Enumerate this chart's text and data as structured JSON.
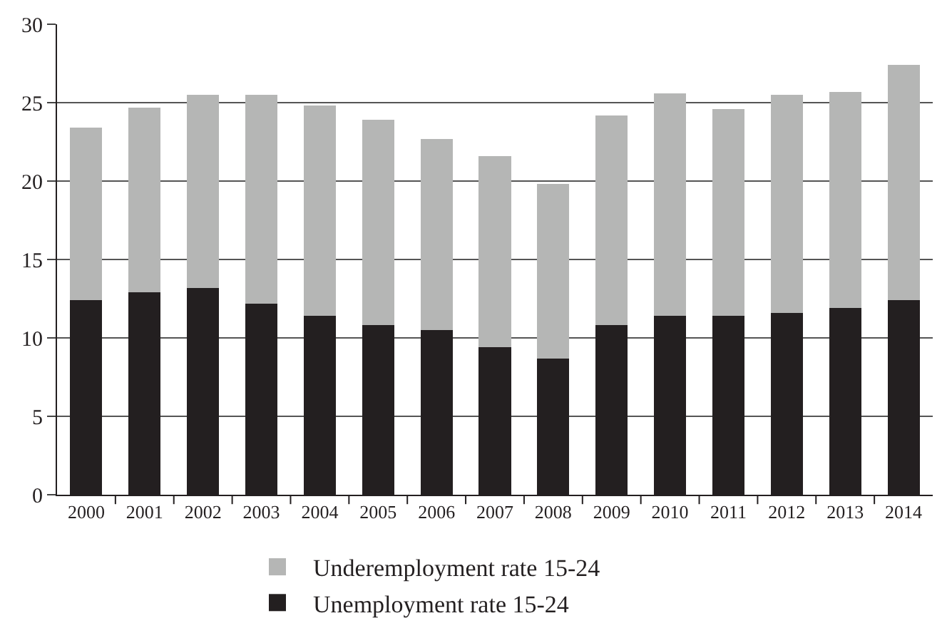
{
  "chart_data": {
    "type": "bar",
    "stacked": true,
    "categories": [
      "2000",
      "2001",
      "2002",
      "2003",
      "2004",
      "2005",
      "2006",
      "2007",
      "2008",
      "2009",
      "2010",
      "2011",
      "2012",
      "2013",
      "2014"
    ],
    "series": [
      {
        "name": "Unemployment rate 15-24",
        "color": "#231f20",
        "values": [
          12.4,
          12.9,
          13.2,
          12.2,
          11.4,
          10.8,
          10.5,
          9.4,
          8.7,
          10.8,
          11.4,
          11.4,
          11.6,
          11.9,
          12.4
        ]
      },
      {
        "name": "Underemployment rate 15-24",
        "color": "#b5b6b5",
        "values": [
          11.0,
          11.8,
          12.3,
          13.3,
          13.4,
          13.1,
          12.2,
          12.2,
          11.1,
          13.4,
          14.2,
          13.2,
          13.9,
          13.8,
          15.0
        ]
      }
    ],
    "ylim": [
      0,
      30
    ],
    "yticks": [
      0,
      5,
      10,
      15,
      20,
      25,
      30
    ],
    "grid": "y",
    "legend": "bottom"
  }
}
